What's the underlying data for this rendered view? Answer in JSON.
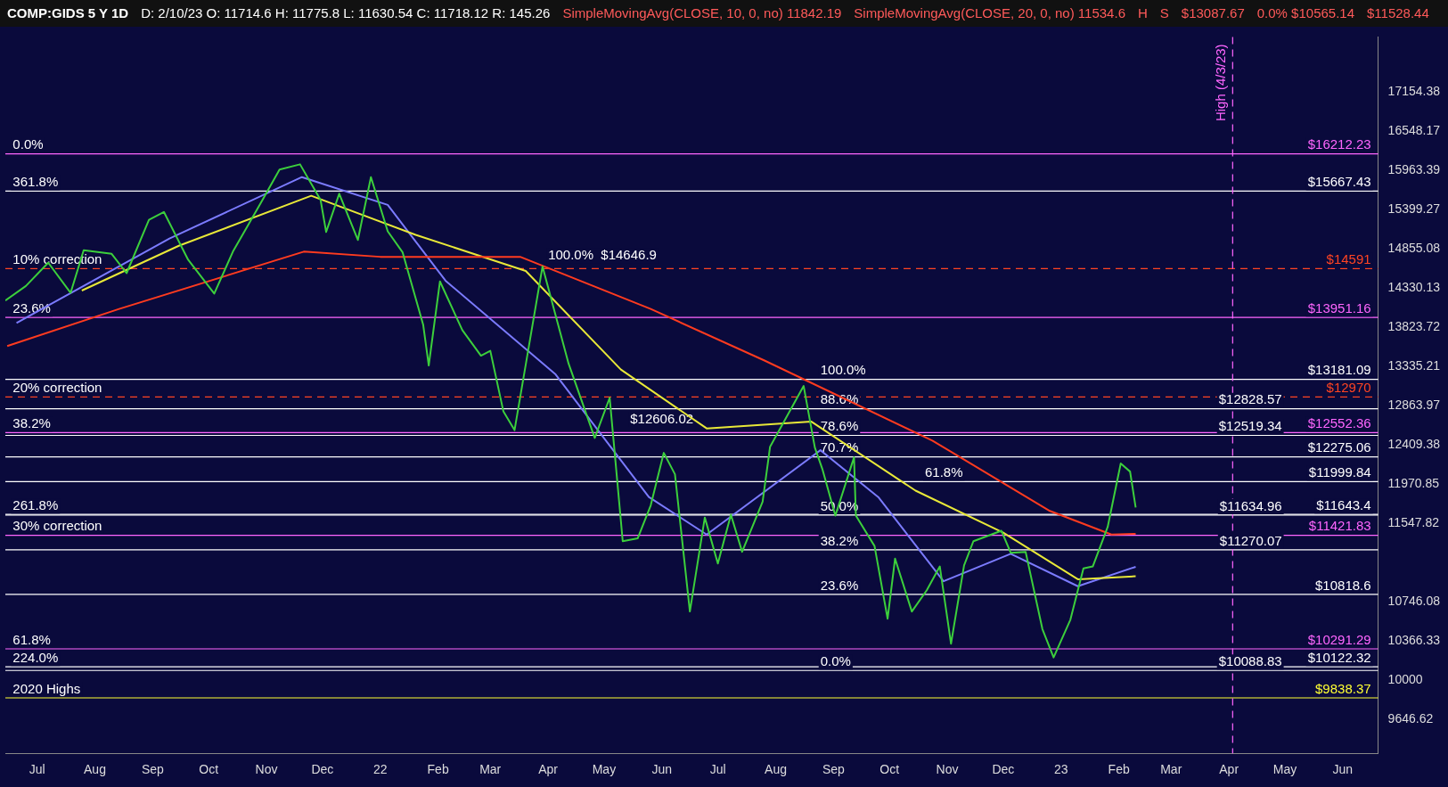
{
  "chart_data": {
    "type": "line",
    "title": "COMP:GIDS 5 Y 1D",
    "subtitle": "D: 2/10/23 O: 11714.6 H: 11775.8 L: 11630.54 C: 11718.12 R: 145.26",
    "xlim": [
      "2021-06-14",
      "2023-06-20"
    ],
    "xticks": [
      {
        "value": "2021-07-01",
        "label": "Jul"
      },
      {
        "value": "2021-08-01",
        "label": "Aug"
      },
      {
        "value": "2021-09-01",
        "label": "Sep"
      },
      {
        "value": "2021-10-01",
        "label": "Oct"
      },
      {
        "value": "2021-11-01",
        "label": "Nov"
      },
      {
        "value": "2021-12-01",
        "label": "Dec"
      },
      {
        "value": "2022-01-01",
        "label": "22"
      },
      {
        "value": "2022-02-01",
        "label": "Feb"
      },
      {
        "value": "2022-03-01",
        "label": "Mar"
      },
      {
        "value": "2022-04-01",
        "label": "Apr"
      },
      {
        "value": "2022-05-01",
        "label": "May"
      },
      {
        "value": "2022-06-01",
        "label": "Jun"
      },
      {
        "value": "2022-07-01",
        "label": "Jul"
      },
      {
        "value": "2022-08-01",
        "label": "Aug"
      },
      {
        "value": "2022-09-01",
        "label": "Sep"
      },
      {
        "value": "2022-10-01",
        "label": "Oct"
      },
      {
        "value": "2022-11-01",
        "label": "Nov"
      },
      {
        "value": "2022-12-01",
        "label": "Dec"
      },
      {
        "value": "2023-01-01",
        "label": "23"
      },
      {
        "value": "2023-02-01",
        "label": "Feb"
      },
      {
        "value": "2023-03-01",
        "label": "Mar"
      },
      {
        "value": "2023-04-01",
        "label": "Apr"
      },
      {
        "value": "2023-05-01",
        "label": "May"
      },
      {
        "value": "2023-06-01",
        "label": "Jun"
      }
    ],
    "ylim": [
      9350,
      18050
    ],
    "log": "y",
    "yticks": [
      9646.62,
      10000,
      10366.33,
      10746.08,
      11547.82,
      11970.85,
      12409.38,
      12863.97,
      13335.21,
      13823.72,
      14330.13,
      14855.08,
      15399.27,
      15963.39,
      16548.17,
      17154.38
    ],
    "grid": false,
    "legend": false,
    "series": [
      {
        "color": "#3ccf3c",
        "x": [
          "2021-06-14",
          "2021-06-25",
          "2021-07-07",
          "2021-07-19",
          "2021-07-26",
          "2021-08-10",
          "2021-08-18",
          "2021-08-30",
          "2021-09-07",
          "2021-09-20",
          "2021-10-04",
          "2021-10-14",
          "2021-10-29",
          "2021-11-08",
          "2021-11-19",
          "2021-11-30",
          "2021-12-03",
          "2021-12-10",
          "2021-12-20",
          "2021-12-27",
          "2022-01-05",
          "2022-01-13",
          "2022-01-24",
          "2022-01-27",
          "2022-02-02",
          "2022-02-14",
          "2022-02-24",
          "2022-03-01",
          "2022-03-08",
          "2022-03-14",
          "2022-03-29",
          "2022-04-06",
          "2022-04-12",
          "2022-04-26",
          "2022-05-04",
          "2022-05-11",
          "2022-05-19",
          "2022-05-26",
          "2022-06-02",
          "2022-06-08",
          "2022-06-16",
          "2022-06-24",
          "2022-07-01",
          "2022-07-08",
          "2022-07-14",
          "2022-07-25",
          "2022-07-29",
          "2022-08-05",
          "2022-08-16",
          "2022-08-22",
          "2022-08-26",
          "2022-09-02",
          "2022-09-12",
          "2022-09-13",
          "2022-09-23",
          "2022-09-30",
          "2022-10-04",
          "2022-10-13",
          "2022-10-21",
          "2022-10-28",
          "2022-11-03",
          "2022-11-10",
          "2022-11-15",
          "2022-11-30",
          "2022-12-05",
          "2022-12-13",
          "2022-12-22",
          "2022-12-28",
          "2023-01-06",
          "2023-01-13",
          "2023-01-18",
          "2023-01-26",
          "2023-02-02",
          "2023-02-07",
          "2023-02-10"
        ],
        "values": [
          14170,
          14360,
          14670,
          14270,
          14840,
          14790,
          14530,
          15260,
          15370,
          14710,
          14260,
          14820,
          15500,
          15980,
          16057,
          15540,
          15090,
          15630,
          14980,
          15870,
          15100,
          14810,
          13860,
          13350,
          14420,
          13790,
          13470,
          13530,
          12800,
          12580,
          14620,
          13890,
          13370,
          12490,
          12960,
          11360,
          11390,
          11740,
          12320,
          12080,
          10650,
          11610,
          11130,
          11640,
          11250,
          11780,
          12390,
          12660,
          13100,
          12380,
          12140,
          11630,
          12270,
          11630,
          11310,
          10580,
          11180,
          10650,
          10860,
          11100,
          10340,
          11110,
          11360,
          11470,
          11240,
          11250,
          10480,
          10210,
          10570,
          11080,
          11100,
          11510,
          12200,
          12110,
          11718.12
        ]
      },
      {
        "color": "#ff3b1f",
        "x": [
          "2021-06-15",
          "2021-08-14",
          "2021-11-21",
          "2022-01-01",
          "2022-03-17",
          "2022-05-26",
          "2022-07-26",
          "2022-10-24",
          "2022-12-26",
          "2023-01-28",
          "2023-02-10"
        ],
        "values": [
          13590,
          14060,
          14820,
          14750,
          14750,
          14060,
          13410,
          12460,
          11680,
          11430,
          11437.83
        ]
      },
      {
        "color": "#e8e838",
        "x": [
          "2021-07-25",
          "2021-09-15",
          "2021-11-25",
          "2022-01-20",
          "2022-03-20",
          "2022-05-10",
          "2022-06-25",
          "2022-08-20",
          "2022-10-15",
          "2022-12-01",
          "2023-01-10",
          "2023-02-10"
        ],
        "values": [
          14300,
          14900,
          15600,
          15050,
          14560,
          13300,
          12600,
          12680,
          11900,
          11450,
          10970,
          11000
        ]
      },
      {
        "color": "#7b7bff",
        "x": [
          "2021-06-20",
          "2021-09-10",
          "2021-11-20",
          "2022-01-05",
          "2022-02-05",
          "2022-04-05",
          "2022-05-25",
          "2022-06-25",
          "2022-08-25",
          "2022-09-25",
          "2022-10-30",
          "2022-12-05",
          "2023-01-10",
          "2023-02-10"
        ],
        "values": [
          13880,
          15000,
          15870,
          15470,
          14430,
          13240,
          11830,
          11430,
          12350,
          11830,
          10950,
          11230,
          10900,
          11096.21
        ]
      }
    ],
    "ref_lines": [
      {
        "axis": "y",
        "value": 16212.23,
        "label": "$16212.23",
        "color": "#ff66ff"
      },
      {
        "axis": "y",
        "value": 15667.43,
        "label": "$15667.43",
        "color": "#ffffff"
      },
      {
        "axis": "y",
        "value": 14591,
        "label": "$14591",
        "color": "#ff4422",
        "line_style": "dashed"
      },
      {
        "axis": "y",
        "value": 13951.16,
        "label": "$13951.16",
        "color": "#ff66ff"
      },
      {
        "axis": "y",
        "value": 13181.09,
        "label": "$13181.09",
        "color": "#ffffff"
      },
      {
        "axis": "y",
        "value": 12970,
        "label": "$12970",
        "color": "#ff4422",
        "line_style": "dashed"
      },
      {
        "axis": "y",
        "value": 12828.57,
        "label": "$12828.57",
        "color": "#ffffff"
      },
      {
        "axis": "y",
        "value": 12552.36,
        "label": "$12552.36",
        "color": "#ff66ff"
      },
      {
        "axis": "y",
        "value": 12519.34,
        "label": "$12519.34",
        "color": "#ffffff"
      },
      {
        "axis": "y",
        "value": 12275.06,
        "label": "$12275.06",
        "color": "#ffffff"
      },
      {
        "axis": "y",
        "value": 11999.84,
        "label": "$11999.84",
        "color": "#ffffff"
      },
      {
        "axis": "y",
        "value": 11643.4,
        "label": "$11643.4",
        "color": "#ffffff"
      },
      {
        "axis": "y",
        "value": 11634.96,
        "label": "$11634.96",
        "color": "#ffffff"
      },
      {
        "axis": "y",
        "value": 11421.83,
        "label": "$11421.83",
        "color": "#ff66ff"
      },
      {
        "axis": "y",
        "value": 11270.07,
        "label": "$11270.07",
        "color": "#ffffff"
      },
      {
        "axis": "y",
        "value": 10818.6,
        "label": "$10818.6",
        "color": "#ffffff"
      },
      {
        "axis": "y",
        "value": 10291.29,
        "label": "$10291.29",
        "color": "#ff66ff"
      },
      {
        "axis": "y",
        "value": 10122.32,
        "label": "$10122.32",
        "color": "#ffffff"
      },
      {
        "axis": "y",
        "value": 10088.83,
        "label": "$10088.83",
        "color": "#ffffff"
      },
      {
        "axis": "y",
        "value": 9838.37,
        "label": "$9838.37",
        "color": "#ffff33"
      },
      {
        "axis": "x",
        "value": "2023-04-03",
        "label": "High (4/3/23)",
        "color": "#ff66ff",
        "line_style": "dashed"
      }
    ],
    "annotations": [
      "SimpleMovingAvg(CLOSE, 10, 0, no) 11842.19",
      "SimpleMovingAvg(CLOSE, 20, 0, no) 11534.6",
      "H",
      "S",
      "$13087.67",
      "0.0%  $10565.14",
      {
        "text": "0.0%",
        "x": "2021-06-18",
        "y": 16212.23
      },
      {
        "text": "361.8%",
        "x": "2021-06-18",
        "y": 15667.43
      },
      {
        "text": "10% correction",
        "x": "2021-06-18",
        "y": 14591
      },
      {
        "text": "23.6%",
        "x": "2021-06-18",
        "y": 13951.16
      },
      {
        "text": "20% correction",
        "x": "2021-06-18",
        "y": 12970
      },
      {
        "text": "38.2%",
        "x": "2021-06-18",
        "y": 12552.36
      },
      {
        "text": "261.8%",
        "x": "2021-06-18",
        "y": 11643.4
      },
      {
        "text": "30% correction",
        "x": "2021-06-18",
        "y": 11421.83
      },
      {
        "text": "61.8%",
        "x": "2021-06-18",
        "y": 10291.29
      },
      {
        "text": "224.0%",
        "x": "2021-06-18",
        "y": 10122.32
      },
      {
        "text": "2020 Highs",
        "x": "2021-06-18",
        "y": 9838.37
      },
      {
        "text": "100.0%  $14646.9",
        "x": "2022-04-01",
        "y": 14646.9
      },
      {
        "text": "$12606.02",
        "x": "2022-05-15",
        "y": 12606.02
      },
      "$11528.44",
      {
        "text": "100.0%",
        "x": "2022-08-25",
        "y": 13181.09
      },
      {
        "text": "88.6%",
        "x": "2022-08-25",
        "y": 12828.57
      },
      {
        "text": "78.6%",
        "x": "2022-08-25",
        "y": 12519.34
      },
      {
        "text": "70.7%",
        "x": "2022-08-25",
        "y": 12275.06
      },
      {
        "text": "61.8%",
        "x": "2022-10-20",
        "y": 11999.84
      },
      {
        "text": "50.0%",
        "x": "2022-08-25",
        "y": 11634.96
      },
      {
        "text": "38.2%",
        "x": "2022-08-25",
        "y": 11270.07
      },
      {
        "text": "23.6%",
        "x": "2022-08-25",
        "y": 10818.6
      },
      {
        "text": "0.0%",
        "x": "2022-08-25",
        "y": 10088.83
      }
    ]
  }
}
